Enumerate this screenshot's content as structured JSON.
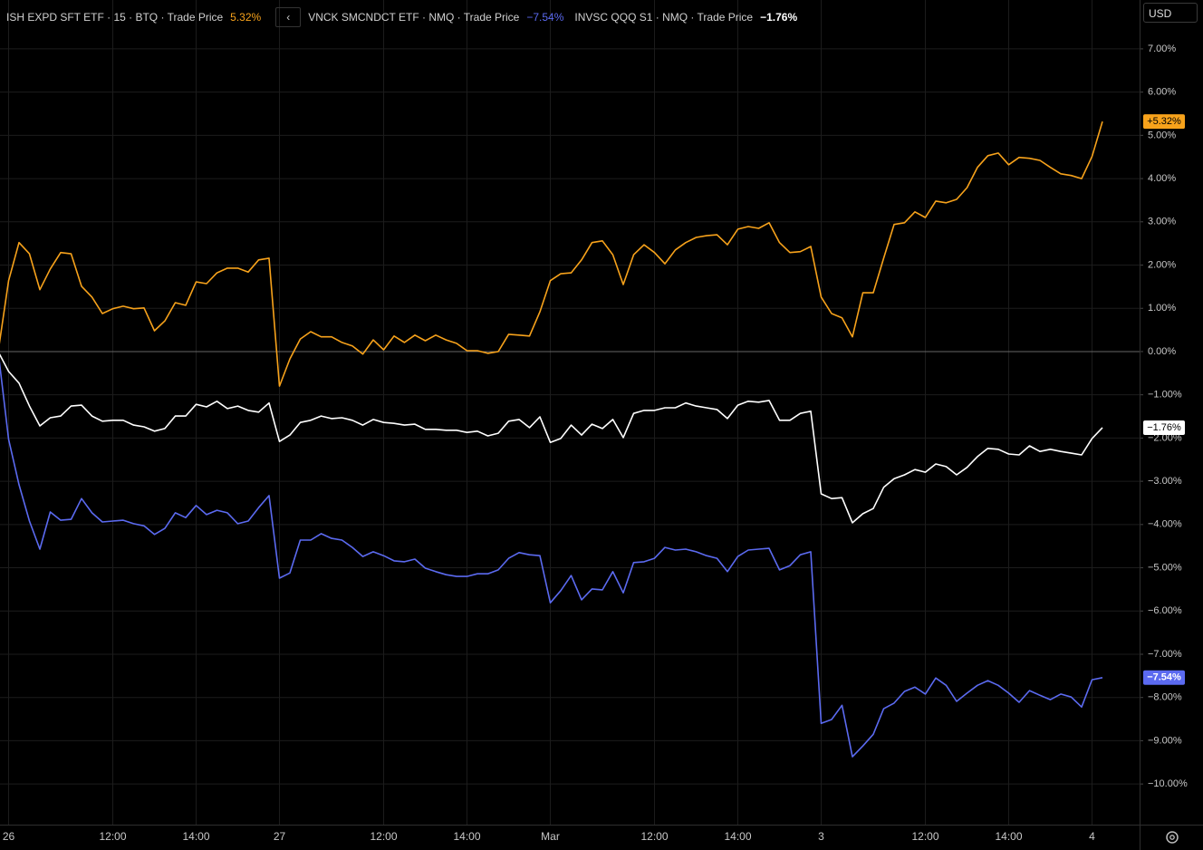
{
  "chart_data": {
    "type": "line",
    "currency": "USD",
    "grid": true,
    "baseline": 0,
    "categories": [
      null,
      "26",
      null,
      null,
      null,
      null,
      null,
      null,
      null,
      null,
      null,
      "12:00",
      null,
      null,
      null,
      null,
      null,
      null,
      null,
      "14:00",
      null,
      null,
      null,
      null,
      null,
      null,
      null,
      "27",
      null,
      null,
      null,
      null,
      null,
      null,
      null,
      null,
      null,
      "12:00",
      null,
      null,
      null,
      null,
      null,
      null,
      null,
      "14:00",
      null,
      null,
      null,
      null,
      null,
      null,
      null,
      "Mar",
      null,
      null,
      null,
      null,
      null,
      null,
      null,
      null,
      null,
      "12:00",
      null,
      null,
      null,
      null,
      null,
      null,
      null,
      "14:00",
      null,
      null,
      null,
      null,
      null,
      null,
      null,
      "3",
      null,
      null,
      null,
      null,
      null,
      null,
      null,
      null,
      null,
      "12:00",
      null,
      null,
      null,
      null,
      null,
      null,
      null,
      "14:00",
      null,
      null,
      null,
      null,
      null,
      null,
      null,
      "4",
      null
    ],
    "ylim": [
      -10.94,
      8.13
    ],
    "yticks": [
      {
        "value": 7,
        "label": "7.00%"
      },
      {
        "value": 6,
        "label": "6.00%"
      },
      {
        "value": 5,
        "label": "5.00%"
      },
      {
        "value": 4,
        "label": "4.00%"
      },
      {
        "value": 3,
        "label": "3.00%"
      },
      {
        "value": 2,
        "label": "2.00%"
      },
      {
        "value": 1,
        "label": "1.00%"
      },
      {
        "value": 0,
        "label": "0.00%"
      },
      {
        "value": -1,
        "label": "−1.00%"
      },
      {
        "value": -2,
        "label": "−2.00%"
      },
      {
        "value": -3,
        "label": "−3.00%"
      },
      {
        "value": -4,
        "label": "−4.00%"
      },
      {
        "value": -5,
        "label": "−5.00%"
      },
      {
        "value": -6,
        "label": "−6.00%"
      },
      {
        "value": -7,
        "label": "−7.00%"
      },
      {
        "value": -8,
        "label": "−8.00%"
      },
      {
        "value": -9,
        "label": "−9.00%"
      },
      {
        "value": -10,
        "label": "−10.00%"
      }
    ],
    "series": [
      {
        "name": "ISH EXPD SFT ETF · 15 · BTQ · Trade Price",
        "change_label": "5.32%",
        "price_tag": "+5.32%",
        "color": "#f7a21b",
        "tag_text_color": "#000000",
        "values": [
          0,
          1.64,
          2.52,
          2.26,
          1.43,
          1.91,
          2.29,
          2.26,
          1.51,
          1.26,
          0.88,
          0.99,
          1.05,
          0.99,
          1.01,
          0.48,
          0.71,
          1.13,
          1.07,
          1.61,
          1.57,
          1.82,
          1.93,
          1.93,
          1.84,
          2.12,
          2.16,
          -0.8,
          -0.17,
          0.29,
          0.46,
          0.34,
          0.34,
          0.21,
          0.13,
          -0.06,
          0.27,
          0.04,
          0.36,
          0.21,
          0.38,
          0.25,
          0.38,
          0.27,
          0.19,
          0.02,
          0.02,
          -0.04,
          0,
          0.4,
          0.38,
          0.36,
          0.92,
          1.64,
          1.8,
          1.82,
          2.12,
          2.52,
          2.56,
          2.24,
          1.55,
          2.24,
          2.47,
          2.29,
          2.03,
          2.35,
          2.52,
          2.64,
          2.68,
          2.7,
          2.47,
          2.83,
          2.89,
          2.85,
          2.98,
          2.52,
          2.29,
          2.31,
          2.43,
          1.26,
          0.88,
          0.78,
          0.34,
          1.36,
          1.36,
          2.16,
          2.94,
          2.98,
          3.23,
          3.1,
          3.48,
          3.44,
          3.52,
          3.79,
          4.26,
          4.53,
          4.59,
          4.32,
          4.49,
          4.47,
          4.42,
          4.26,
          4.11,
          4.07,
          4,
          4.51,
          5.32
        ]
      },
      {
        "name": "VNCK SMCNDCT ETF · NMQ · Trade Price",
        "change_label": "−7.54%",
        "price_tag": "−7.54%",
        "color": "#5b6af0",
        "tag_text_color": "#ffffff",
        "values": [
          0,
          -2.03,
          -3.08,
          -3.92,
          -4.57,
          -3.71,
          -3.9,
          -3.88,
          -3.4,
          -3.73,
          -3.94,
          -3.92,
          -3.9,
          -3.98,
          -4.03,
          -4.23,
          -4.09,
          -3.73,
          -3.84,
          -3.56,
          -3.77,
          -3.67,
          -3.73,
          -3.98,
          -3.92,
          -3.61,
          -3.33,
          -5.24,
          -5.12,
          -4.36,
          -4.36,
          -4.21,
          -4.32,
          -4.36,
          -4.53,
          -4.74,
          -4.63,
          -4.72,
          -4.84,
          -4.86,
          -4.8,
          -5.01,
          -5.09,
          -5.16,
          -5.2,
          -5.2,
          -5.14,
          -5.14,
          -5.05,
          -4.78,
          -4.65,
          -4.7,
          -4.72,
          -5.81,
          -5.53,
          -5.18,
          -5.74,
          -5.49,
          -5.51,
          -5.09,
          -5.58,
          -4.88,
          -4.86,
          -4.78,
          -4.53,
          -4.59,
          -4.57,
          -4.63,
          -4.72,
          -4.78,
          -5.09,
          -4.74,
          -4.59,
          -4.57,
          -4.55,
          -5.05,
          -4.95,
          -4.7,
          -4.63,
          -8.6,
          -8.51,
          -8.18,
          -9.37,
          -9.12,
          -8.85,
          -8.26,
          -8.13,
          -7.86,
          -7.76,
          -7.92,
          -7.55,
          -7.72,
          -8.09,
          -7.9,
          -7.72,
          -7.61,
          -7.72,
          -7.9,
          -8.11,
          -7.84,
          -7.95,
          -8.05,
          -7.92,
          -7.99,
          -8.22,
          -7.59,
          -7.54
        ]
      },
      {
        "name": "INVSC QQQ S1 · NMQ · Trade Price",
        "change_label": "−1.76%",
        "price_tag": "−1.76%",
        "color": "#ffffff",
        "tag_text_color": "#000000",
        "values": [
          0,
          -0.46,
          -0.73,
          -1.26,
          -1.72,
          -1.53,
          -1.49,
          -1.26,
          -1.24,
          -1.49,
          -1.61,
          -1.59,
          -1.59,
          -1.7,
          -1.74,
          -1.84,
          -1.78,
          -1.49,
          -1.49,
          -1.22,
          -1.28,
          -1.15,
          -1.32,
          -1.26,
          -1.36,
          -1.4,
          -1.19,
          -2.08,
          -1.93,
          -1.64,
          -1.59,
          -1.49,
          -1.55,
          -1.53,
          -1.59,
          -1.7,
          -1.57,
          -1.64,
          -1.66,
          -1.7,
          -1.68,
          -1.8,
          -1.8,
          -1.82,
          -1.82,
          -1.87,
          -1.84,
          -1.95,
          -1.89,
          -1.61,
          -1.57,
          -1.76,
          -1.51,
          -2.1,
          -2.01,
          -1.7,
          -1.93,
          -1.68,
          -1.78,
          -1.57,
          -1.99,
          -1.43,
          -1.36,
          -1.36,
          -1.3,
          -1.3,
          -1.19,
          -1.26,
          -1.3,
          -1.34,
          -1.55,
          -1.24,
          -1.15,
          -1.17,
          -1.13,
          -1.59,
          -1.59,
          -1.43,
          -1.38,
          -3.29,
          -3.4,
          -3.38,
          -3.96,
          -3.75,
          -3.63,
          -3.14,
          -2.94,
          -2.85,
          -2.73,
          -2.79,
          -2.6,
          -2.66,
          -2.85,
          -2.68,
          -2.43,
          -2.24,
          -2.26,
          -2.37,
          -2.39,
          -2.18,
          -2.31,
          -2.26,
          -2.31,
          -2.35,
          -2.39,
          -2.01,
          -1.76
        ]
      }
    ]
  }
}
